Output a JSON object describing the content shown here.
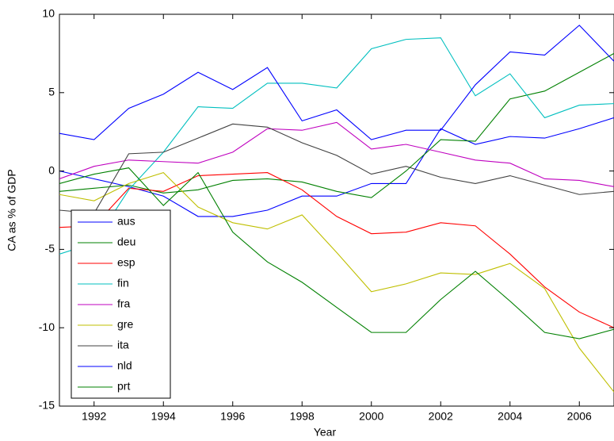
{
  "chart_data": {
    "type": "line",
    "x": [
      1991,
      1992,
      1993,
      1994,
      1995,
      1996,
      1997,
      1998,
      1999,
      2000,
      2001,
      2002,
      2003,
      2004,
      2005,
      2006,
      2007
    ],
    "series": [
      {
        "name": "aus",
        "color": "#0000ff",
        "values": [
          0,
          -0.5,
          -1.0,
          -1.6,
          -2.9,
          -2.9,
          -2.5,
          -1.6,
          -1.6,
          -0.8,
          -0.8,
          2.7,
          1.7,
          2.2,
          2.1,
          2.7,
          3.4
        ]
      },
      {
        "name": "deu",
        "color": "#008000",
        "values": [
          -1.3,
          -1.1,
          -0.9,
          -1.4,
          -1.2,
          -0.6,
          -0.5,
          -0.7,
          -1.3,
          -1.7,
          0.0,
          2.0,
          1.9,
          4.6,
          5.1,
          6.3,
          7.5
        ]
      },
      {
        "name": "esp",
        "color": "#ff0000",
        "values": [
          -3.6,
          -3.5,
          -1.1,
          -1.3,
          -0.3,
          -0.2,
          -0.1,
          -1.2,
          -2.9,
          -4.0,
          -3.9,
          -3.3,
          -3.5,
          -5.3,
          -7.4,
          -9.0,
          -10.0
        ]
      },
      {
        "name": "fin",
        "color": "#00bfbf",
        "values": [
          -5.3,
          -4.6,
          -1.2,
          1.2,
          4.1,
          4.0,
          5.6,
          5.6,
          5.3,
          7.8,
          8.4,
          8.5,
          4.8,
          6.2,
          3.4,
          4.2,
          4.3
        ]
      },
      {
        "name": "fra",
        "color": "#bf00bf",
        "values": [
          -0.5,
          0.3,
          0.7,
          0.6,
          0.5,
          1.2,
          2.7,
          2.6,
          3.1,
          1.4,
          1.7,
          1.2,
          0.7,
          0.5,
          -0.5,
          -0.6,
          -1.0
        ]
      },
      {
        "name": "gre",
        "color": "#bfbf00",
        "values": [
          -1.5,
          -1.9,
          -0.8,
          -0.1,
          -2.3,
          -3.3,
          -3.7,
          -2.8,
          -5.2,
          -7.7,
          -7.2,
          -6.5,
          -6.6,
          -5.9,
          -7.5,
          -11.3,
          -14.1
        ]
      },
      {
        "name": "ita",
        "color": "#404040",
        "values": [
          -2.5,
          -2.7,
          1.1,
          1.2,
          2.1,
          3.0,
          2.8,
          1.8,
          1.0,
          -0.2,
          0.3,
          -0.4,
          -0.8,
          -0.3,
          -0.9,
          -1.5,
          -1.3
        ]
      },
      {
        "name": "nld",
        "color": "#0000ff",
        "values": [
          2.4,
          2.0,
          4.0,
          4.9,
          6.3,
          5.2,
          6.6,
          3.2,
          3.9,
          2.0,
          2.6,
          2.6,
          5.5,
          7.6,
          7.4,
          9.3,
          7.0
        ]
      },
      {
        "name": "prt",
        "color": "#008000",
        "values": [
          -0.8,
          -0.2,
          0.2,
          -2.2,
          -0.1,
          -3.9,
          -5.8,
          -7.1,
          -8.7,
          -10.3,
          -10.3,
          -8.2,
          -6.4,
          -8.3,
          -10.3,
          -10.7,
          -10.1
        ]
      }
    ],
    "x_label": "Year",
    "y_label": "CA as % of GDP",
    "xlim": [
      1991,
      2007
    ],
    "xticks": [
      1992,
      1994,
      1996,
      1998,
      2000,
      2002,
      2004,
      2006
    ],
    "ylim": [
      -15,
      10
    ],
    "yticks": [
      -15,
      -10,
      -5,
      0,
      5,
      10
    ],
    "legend": "lower-left"
  }
}
